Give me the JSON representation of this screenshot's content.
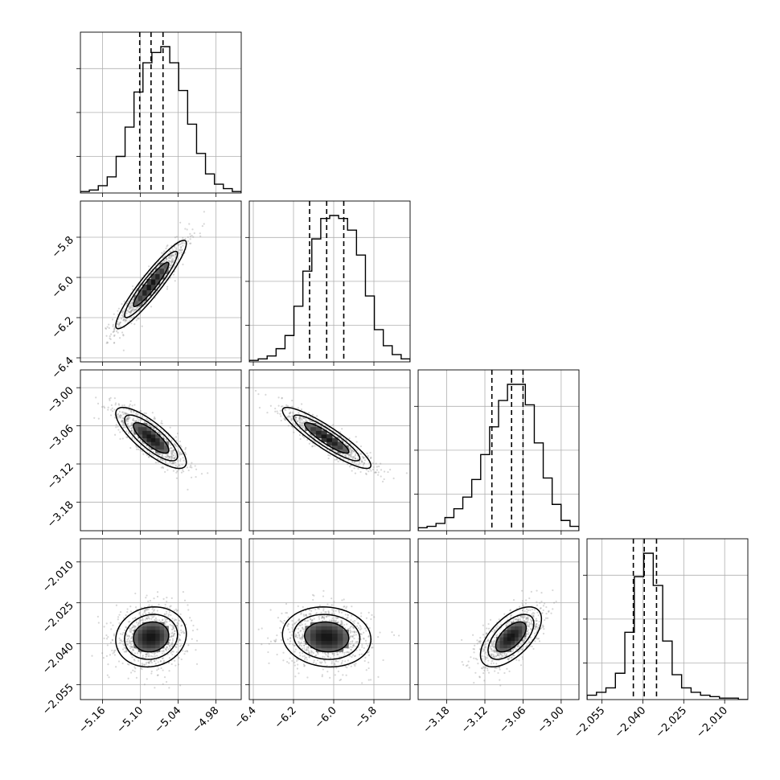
{
  "chart_data": {
    "type": "corner",
    "n_params": 4,
    "grid": true,
    "quantile_lines_style": "dashed",
    "quantiles": [
      [
        -5.101,
        -5.083,
        -5.064
      ],
      [
        -6.12,
        -6.035,
        -5.95
      ],
      [
        -3.109,
        -3.078,
        -3.06
      ],
      [
        -2.0435,
        -2.0395,
        -2.035
      ]
    ],
    "ranges": [
      [
        -5.195,
        -4.94
      ],
      [
        -6.42,
        -5.62
      ],
      [
        -3.225,
        -2.972
      ],
      [
        -2.0605,
        -2.0015
      ]
    ],
    "ticks": [
      [
        -5.16,
        -5.1,
        -5.04,
        -4.98
      ],
      [
        -6.4,
        -6.2,
        -6.0,
        -5.8
      ],
      [
        -3.18,
        -3.12,
        -3.06,
        -3.0
      ],
      [
        -2.055,
        -2.04,
        -2.025,
        -2.01
      ]
    ],
    "tick_labels": [
      [
        "−5.16",
        "−5.10",
        "−5.04",
        "−4.98"
      ],
      [
        "−6.4",
        "−6.2",
        "−6.0",
        "−5.8"
      ],
      [
        "−3.18",
        "−3.12",
        "−3.06",
        "−3.00"
      ],
      [
        "−2.055",
        "−2.040",
        "−2.025",
        "−2.010"
      ]
    ],
    "histograms": [
      [
        0.01,
        0.02,
        0.05,
        0.11,
        0.25,
        0.45,
        0.69,
        0.89,
        0.96,
        1.0,
        0.89,
        0.7,
        0.47,
        0.27,
        0.13,
        0.06,
        0.03,
        0.01
      ],
      [
        0.01,
        0.02,
        0.04,
        0.09,
        0.18,
        0.38,
        0.62,
        0.84,
        0.98,
        1.0,
        0.98,
        0.9,
        0.73,
        0.45,
        0.22,
        0.11,
        0.05,
        0.02
      ],
      [
        0.02,
        0.03,
        0.05,
        0.09,
        0.15,
        0.23,
        0.35,
        0.52,
        0.71,
        0.89,
        1.0,
        1.0,
        0.86,
        0.6,
        0.36,
        0.18,
        0.07,
        0.03
      ],
      [
        0.03,
        0.05,
        0.08,
        0.18,
        0.46,
        0.84,
        1.0,
        0.78,
        0.4,
        0.17,
        0.08,
        0.05,
        0.03,
        0.02,
        0.01,
        0.01,
        0.0
      ]
    ],
    "pairs": [
      {
        "row": 1,
        "col": 0,
        "mean": [
          -5.083,
          -6.035
        ],
        "sigma": [
          0.028,
          0.11
        ],
        "corr": 0.93
      },
      {
        "row": 2,
        "col": 0,
        "mean": [
          -5.083,
          -3.079
        ],
        "sigma": [
          0.028,
          0.024
        ],
        "corr": -0.8
      },
      {
        "row": 2,
        "col": 1,
        "mean": [
          -6.035,
          -3.079
        ],
        "sigma": [
          0.11,
          0.024
        ],
        "corr": -0.9
      },
      {
        "row": 3,
        "col": 0,
        "mean": [
          -5.083,
          -2.0375
        ],
        "sigma": [
          0.028,
          0.0055
        ],
        "corr": 0.1
      },
      {
        "row": 3,
        "col": 1,
        "mean": [
          -6.035,
          -2.0375
        ],
        "sigma": [
          0.11,
          0.0055
        ],
        "corr": -0.08
      },
      {
        "row": 3,
        "col": 2,
        "mean": [
          -3.079,
          -2.0375
        ],
        "sigma": [
          0.024,
          0.0055
        ],
        "corr": 0.6
      }
    ],
    "contour_levels_sigma": [
      1.0,
      1.5,
      2.0
    ],
    "colors": {
      "contour": "#000000",
      "scatter": "#8c8c8c",
      "grid": "#b0b0b0",
      "hist": "#000000"
    }
  }
}
